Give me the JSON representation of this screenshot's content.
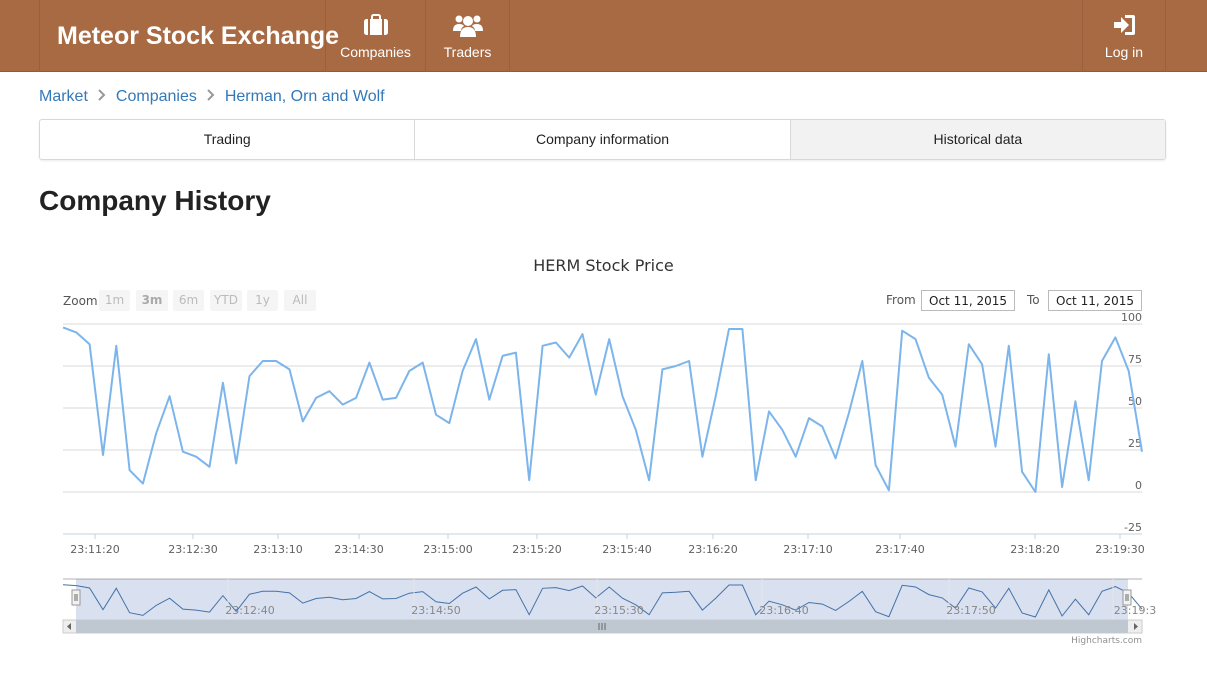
{
  "navbar": {
    "brand": "Meteor Stock Exchange",
    "items": [
      {
        "label": "Companies",
        "icon": "briefcase-icon"
      },
      {
        "label": "Traders",
        "icon": "users-icon"
      }
    ],
    "login": {
      "label": "Log in",
      "icon": "sign-in-icon"
    }
  },
  "breadcrumb": {
    "items": [
      "Market",
      "Companies",
      "Herman, Orn and Wolf"
    ]
  },
  "tabs": [
    {
      "label": "Trading",
      "active": false
    },
    {
      "label": "Company information",
      "active": false
    },
    {
      "label": "Historical data",
      "active": true
    }
  ],
  "page": {
    "title": "Company History"
  },
  "range_selector": {
    "zoom_label": "Zoom",
    "buttons": [
      {
        "label": "1m",
        "selected": false
      },
      {
        "label": "3m",
        "selected": true
      },
      {
        "label": "6m",
        "selected": false
      },
      {
        "label": "YTD",
        "selected": false
      },
      {
        "label": "1y",
        "selected": false
      },
      {
        "label": "All",
        "selected": false
      }
    ],
    "from_label": "From",
    "from_value": "Oct 11, 2015",
    "to_label": "To",
    "to_value": "Oct 11, 2015"
  },
  "chart_data": {
    "type": "line",
    "title": "HERM Stock Price",
    "xlabel": "",
    "ylabel": "",
    "ylim": [
      -25,
      100
    ],
    "y_ticks": [
      100,
      75,
      50,
      25,
      0,
      -25
    ],
    "x_ticks": [
      "23:11:20",
      "23:12:30",
      "23:13:10",
      "23:14:30",
      "23:15:00",
      "23:15:20",
      "23:15:40",
      "23:16:20",
      "23:17:10",
      "23:17:40",
      "23:18:20",
      "23:19:30"
    ],
    "grid": true,
    "line_color": "#7cb5ec",
    "series": [
      {
        "values": [
          98,
          95,
          88,
          22,
          87,
          13,
          5,
          35,
          57,
          24,
          21,
          15,
          65,
          17,
          69,
          78,
          78,
          73,
          42,
          56,
          60,
          52,
          56,
          77,
          55,
          56,
          72,
          77,
          46,
          41,
          72,
          91,
          55,
          81,
          83,
          7,
          87,
          89,
          80,
          94,
          58,
          91,
          57,
          37,
          7,
          73,
          75,
          78,
          21,
          57,
          97,
          97,
          7,
          48,
          37,
          21,
          44,
          39,
          20,
          47,
          78,
          16,
          1,
          96,
          91,
          68,
          58,
          27,
          88,
          76,
          27,
          87,
          12,
          0,
          82,
          3,
          54,
          7,
          78,
          92,
          72,
          24
        ]
      }
    ],
    "navigator": {
      "x_ticks": [
        "23:12:40",
        "23:14:50",
        "23:15:30",
        "23:16:40",
        "23:17:50",
        "23:19:3"
      ]
    },
    "credits": "Highcharts.com"
  }
}
